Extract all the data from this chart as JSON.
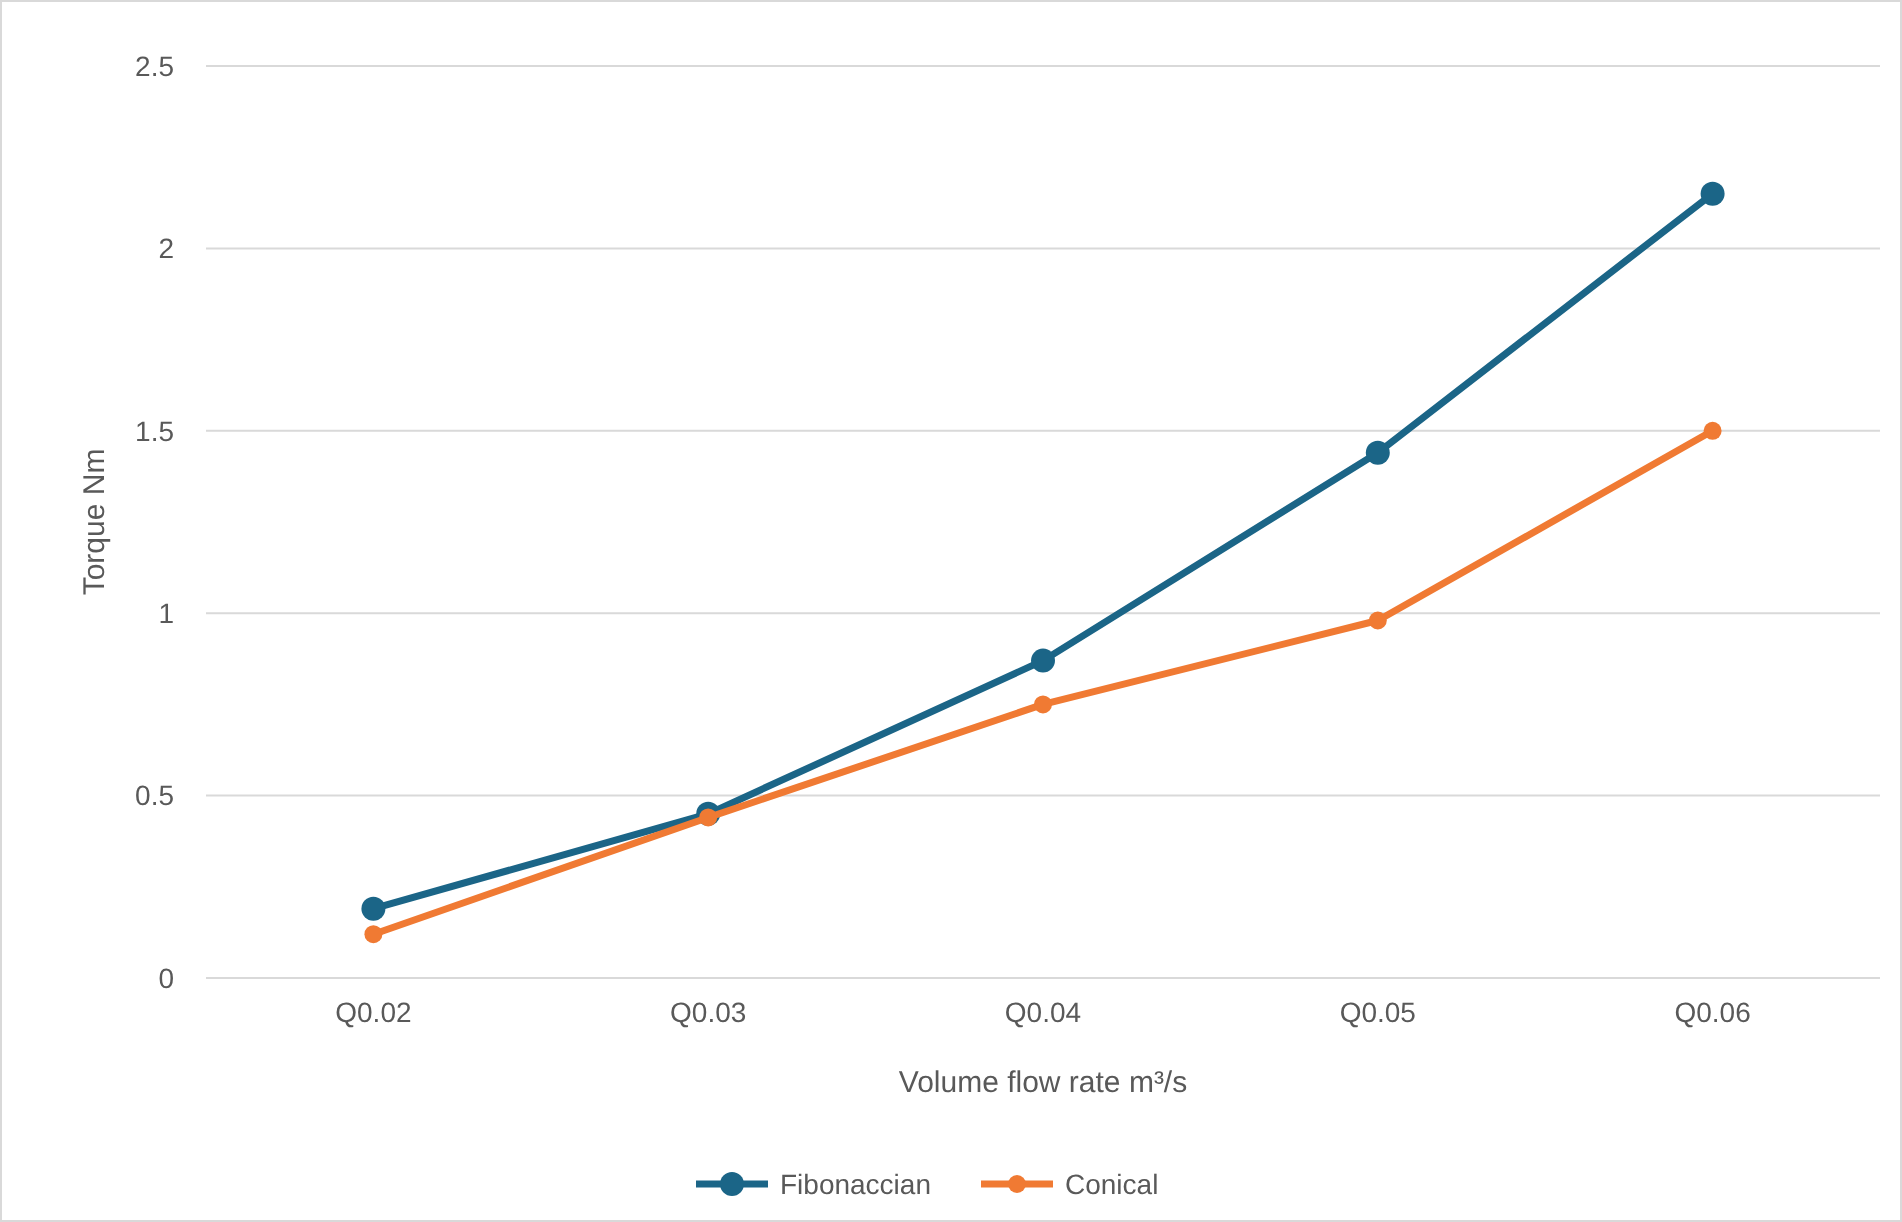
{
  "chart_data": {
    "type": "line",
    "xlabel": "Volume flow rate m³/s",
    "ylabel": "Torque Nm",
    "categories": [
      "Q0.02",
      "Q0.03",
      "Q0.04",
      "Q0.05",
      "Q0.06"
    ],
    "series": [
      {
        "name": "Fibonaccian",
        "color": "#1b6587",
        "values": [
          0.19,
          0.45,
          0.87,
          1.44,
          2.15
        ]
      },
      {
        "name": "Conical",
        "color": "#f07a33",
        "values": [
          0.12,
          0.44,
          0.75,
          0.98,
          1.5
        ]
      }
    ],
    "ylim": [
      0,
      2.5
    ],
    "yticks": [
      0,
      0.5,
      1,
      1.5,
      2,
      2.5
    ],
    "grid": "y",
    "legend": "bottom",
    "marker": "circle",
    "line_style": "solid"
  }
}
